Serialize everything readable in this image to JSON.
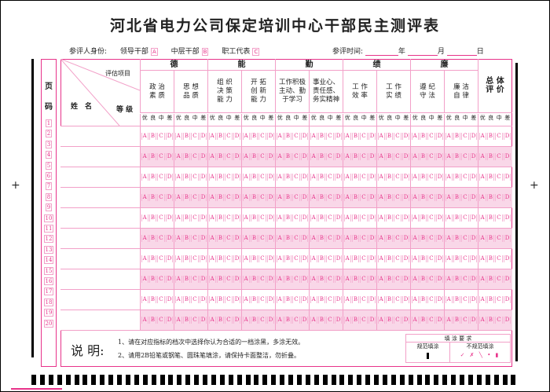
{
  "title": "河北省电力公司保定培训中心干部民主测评表",
  "evaluator": {
    "label": "参评人身份:",
    "options": [
      {
        "label": "领导干部",
        "code": "A"
      },
      {
        "label": "中层干部",
        "code": "B"
      },
      {
        "label": "职工代表",
        "code": "C"
      }
    ]
  },
  "date": {
    "label": "参评时间:",
    "year": "年",
    "month": "月",
    "day": "日"
  },
  "header": {
    "page_label_1": "页",
    "page_label_2": "码",
    "eval_item": "评估项目",
    "name": "姓　名",
    "grade": "等 级"
  },
  "categories": [
    {
      "label": "德",
      "items": [
        "政 治\n素 质",
        "思 想\n品 质"
      ]
    },
    {
      "label": "能",
      "items": [
        "组 织\n决 策\n能 力",
        "开 拓\n创 新\n能 力"
      ]
    },
    {
      "label": "勤",
      "items": [
        "工作积极\n主动、勤\n于学习",
        "事业心、\n责任感、\n务实精神"
      ]
    },
    {
      "label": "绩",
      "items": [
        "工 作\n效 率",
        "工 作\n实 绩"
      ]
    },
    {
      "label": "廉",
      "items": [
        "遵 纪\n守 法",
        "廉 洁\n自 律"
      ]
    }
  ],
  "overall": "总 体\n评 价",
  "grades": [
    "优",
    "良",
    "中",
    "差"
  ],
  "choices": [
    "A",
    "B",
    "C",
    "D"
  ],
  "page_numbers": [
    "1",
    "2",
    "3",
    "4",
    "5",
    "6",
    "7",
    "8",
    "9",
    "10",
    "11",
    "12",
    "13",
    "14",
    "15",
    "16",
    "17",
    "18",
    "19",
    "20"
  ],
  "notes": {
    "heading": "说 明:",
    "lines": [
      "1、请在对应指标的档次中选择你认为合适的一档涂黑，多涂无效。",
      "2、请用2B铅笔或钢笔、圆珠笔填涂，请保持卡面整洁，勿折叠。"
    ]
  },
  "fill_rules": {
    "title": "填 涂 要 求",
    "correct": "规范填涂",
    "incorrect": "不规范填涂",
    "incorrect_marks": "✓ ✗ ╲ • ▮"
  },
  "colors": {
    "accent": "#e8338a",
    "line": "#f2a0c8",
    "shade": "#f9d7e8"
  }
}
